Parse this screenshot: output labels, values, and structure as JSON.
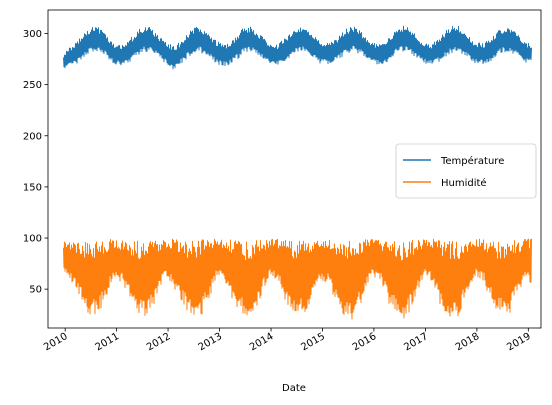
{
  "chart_data": {
    "type": "line",
    "title": "",
    "xlabel": "Date",
    "ylabel": "",
    "xlim": [
      "2009-09-01",
      "2019-04-01"
    ],
    "ylim": [
      12,
      323
    ],
    "x_ticks": [
      "2010",
      "2011",
      "2012",
      "2013",
      "2014",
      "2015",
      "2016",
      "2017",
      "2018",
      "2019"
    ],
    "y_ticks": [
      50,
      100,
      150,
      200,
      250,
      300
    ],
    "grid": false,
    "legend_position": "center-right",
    "series": [
      {
        "name": "Température",
        "color": "#1f77b4",
        "x": [
          "2009-12-20",
          "2010-02-15",
          "2010-04-15",
          "2010-06-15",
          "2010-08-15",
          "2010-10-15",
          "2010-12-15",
          "2011-02-15",
          "2011-04-15",
          "2011-06-15",
          "2011-08-15",
          "2011-10-15",
          "2011-12-15",
          "2012-02-15",
          "2012-04-15",
          "2012-06-15",
          "2012-08-15",
          "2012-10-15",
          "2012-12-15",
          "2013-02-15",
          "2013-04-15",
          "2013-06-15",
          "2013-08-15",
          "2013-10-15",
          "2013-12-15",
          "2014-02-15",
          "2014-04-15",
          "2014-06-15",
          "2014-08-15",
          "2014-10-15",
          "2014-12-15",
          "2015-02-15",
          "2015-04-15",
          "2015-06-15",
          "2015-08-15",
          "2015-10-15",
          "2015-12-15",
          "2016-02-15",
          "2016-04-15",
          "2016-06-15",
          "2016-08-15",
          "2016-10-15",
          "2016-12-15",
          "2017-02-15",
          "2017-04-15",
          "2017-06-15",
          "2017-08-15",
          "2017-10-15",
          "2017-12-15",
          "2018-02-15",
          "2018-04-15",
          "2018-06-15",
          "2018-08-15",
          "2018-10-15",
          "2018-12-15",
          "2019-01-25"
        ],
        "y_low": [
          266,
          268,
          272,
          280,
          283,
          278,
          270,
          268,
          273,
          280,
          283,
          277,
          271,
          264,
          272,
          279,
          282,
          277,
          270,
          268,
          272,
          280,
          283,
          278,
          270,
          269,
          273,
          280,
          283,
          278,
          271,
          270,
          273,
          280,
          283,
          278,
          271,
          269,
          273,
          281,
          283,
          278,
          271,
          269,
          273,
          280,
          283,
          278,
          271,
          270,
          273,
          280,
          283,
          278,
          271,
          272
        ],
        "y_high": [
          280,
          288,
          296,
          305,
          307,
          300,
          290,
          289,
          296,
          305,
          308,
          300,
          292,
          287,
          295,
          305,
          307,
          300,
          292,
          289,
          296,
          305,
          307,
          299,
          291,
          289,
          296,
          305,
          306,
          300,
          292,
          290,
          296,
          305,
          307,
          300,
          292,
          289,
          296,
          305,
          309,
          300,
          292,
          290,
          296,
          306,
          309,
          300,
          292,
          290,
          296,
          305,
          307,
          300,
          292,
          288
        ]
      },
      {
        "name": "Humidité",
        "color": "#ff7f0e",
        "x": [
          "2009-12-20",
          "2010-02-15",
          "2010-04-15",
          "2010-06-15",
          "2010-08-15",
          "2010-10-15",
          "2010-12-15",
          "2011-02-15",
          "2011-04-15",
          "2011-06-15",
          "2011-08-15",
          "2011-10-15",
          "2011-12-15",
          "2012-02-15",
          "2012-04-15",
          "2012-06-15",
          "2012-08-15",
          "2012-10-15",
          "2012-12-15",
          "2013-02-15",
          "2013-04-15",
          "2013-06-15",
          "2013-08-15",
          "2013-10-15",
          "2013-12-15",
          "2014-02-15",
          "2014-04-15",
          "2014-06-15",
          "2014-08-15",
          "2014-10-15",
          "2014-12-15",
          "2015-02-15",
          "2015-04-15",
          "2015-06-15",
          "2015-08-15",
          "2015-10-15",
          "2015-12-15",
          "2016-02-15",
          "2016-04-15",
          "2016-06-15",
          "2016-08-15",
          "2016-10-15",
          "2016-12-15",
          "2017-02-15",
          "2017-04-15",
          "2017-06-15",
          "2017-08-15",
          "2017-10-15",
          "2017-12-15",
          "2018-02-15",
          "2018-04-15",
          "2018-06-15",
          "2018-08-15",
          "2018-10-15",
          "2018-12-15",
          "2019-01-25"
        ],
        "y_low": [
          65,
          58,
          40,
          25,
          23,
          40,
          62,
          55,
          38,
          24,
          22,
          42,
          63,
          50,
          35,
          22,
          20,
          40,
          62,
          55,
          35,
          24,
          22,
          40,
          62,
          60,
          38,
          25,
          23,
          40,
          60,
          55,
          35,
          22,
          18,
          42,
          63,
          58,
          36,
          22,
          18,
          40,
          62,
          58,
          35,
          23,
          20,
          42,
          62,
          58,
          36,
          25,
          24,
          45,
          58,
          55
        ],
        "y_high": [
          96,
          97,
          97,
          96,
          97,
          98,
          99,
          98,
          97,
          97,
          97,
          98,
          99,
          99,
          98,
          97,
          98,
          99,
          99,
          99,
          98,
          96,
          97,
          98,
          99,
          99,
          98,
          97,
          98,
          99,
          99,
          99,
          98,
          97,
          98,
          99,
          99,
          99,
          98,
          97,
          97,
          98,
          99,
          99,
          98,
          97,
          97,
          98,
          99,
          99,
          98,
          96,
          97,
          98,
          99,
          100
        ]
      }
    ]
  }
}
